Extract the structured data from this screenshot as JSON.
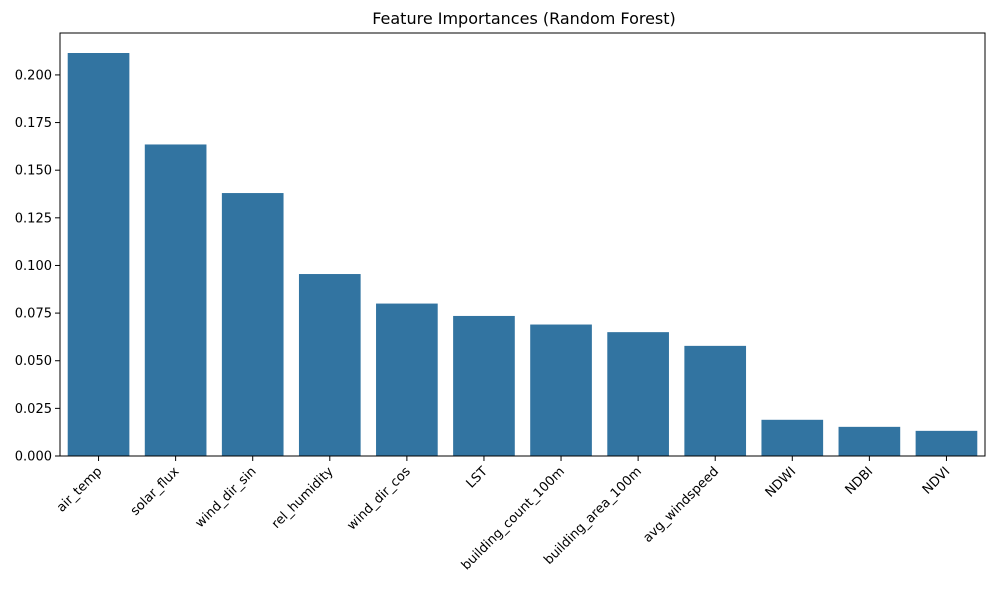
{
  "chart_data": {
    "type": "bar",
    "title": "Feature Importances (Random Forest)",
    "xlabel": "",
    "ylabel": "",
    "categories": [
      "air_temp",
      "solar_flux",
      "wind_dir_sin",
      "rel_humidity",
      "wind_dir_cos",
      "LST",
      "building_count_100m",
      "building_area_100m",
      "avg_windspeed",
      "NDWI",
      "NDBI",
      "NDVI"
    ],
    "values": [
      0.2115,
      0.1635,
      0.138,
      0.0955,
      0.08,
      0.0735,
      0.069,
      0.065,
      0.0578,
      0.019,
      0.0153,
      0.0132
    ],
    "ylim": [
      0,
      0.222
    ],
    "yticks": [
      0.0,
      0.025,
      0.05,
      0.075,
      0.1,
      0.125,
      0.15,
      0.175,
      0.2
    ],
    "ytick_labels": [
      "0.000",
      "0.025",
      "0.050",
      "0.075",
      "0.100",
      "0.125",
      "0.150",
      "0.175",
      "0.200"
    ],
    "xtick_rotation": 45,
    "grid": false,
    "legend": "none",
    "bar_color": "#3274a1"
  }
}
